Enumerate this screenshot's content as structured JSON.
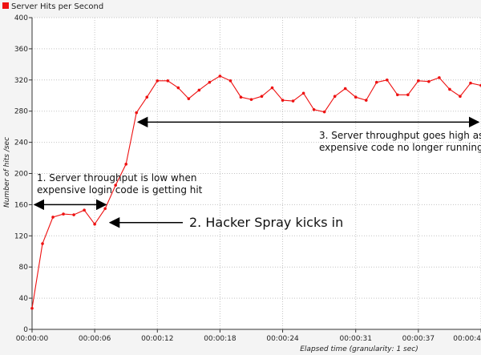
{
  "chart_data": {
    "type": "line",
    "legend": {
      "label": "Server Hits per Second",
      "color": "#ee1111",
      "placement": "top-left"
    },
    "xlabel": "Elapsed time (granularity: 1 sec)",
    "ylabel": "Number of hits /sec",
    "ylim": [
      0,
      400
    ],
    "xlim": [
      0,
      43
    ],
    "y_ticks": [
      0,
      40,
      80,
      120,
      160,
      200,
      240,
      280,
      320,
      360,
      400
    ],
    "x_ticks": [
      {
        "t": 0,
        "label": "00:00:00"
      },
      {
        "t": 6,
        "label": "00:00:06"
      },
      {
        "t": 12,
        "label": "00:00:12"
      },
      {
        "t": 18,
        "label": "00:00:18"
      },
      {
        "t": 24,
        "label": "00:00:24"
      },
      {
        "t": 31,
        "label": "00:00:31"
      },
      {
        "t": 37,
        "label": "00:00:37"
      },
      {
        "t": 43,
        "label": "00:00:4"
      }
    ],
    "grid": true,
    "series": [
      {
        "name": "Server Hits per Second",
        "color": "#ee1111",
        "x": [
          0,
          1,
          2,
          3,
          4,
          5,
          6,
          7,
          8,
          9,
          10,
          11,
          12,
          13,
          14,
          15,
          16,
          17,
          18,
          19,
          20,
          21,
          22,
          23,
          24,
          25,
          26,
          27,
          28,
          29,
          30,
          31,
          32,
          33,
          34,
          35,
          36,
          37,
          38,
          39,
          40,
          41,
          42,
          43
        ],
        "values": [
          27,
          110,
          144,
          148,
          147,
          153,
          135,
          155,
          185,
          212,
          278,
          298,
          319,
          319,
          310,
          296,
          307,
          317,
          325,
          319,
          298,
          295,
          299,
          310,
          294,
          293,
          303,
          282,
          279,
          299,
          309,
          298,
          294,
          317,
          320,
          301,
          301,
          319,
          318,
          323,
          308,
          299,
          316,
          313
        ]
      }
    ],
    "annotations": [
      {
        "lines": [
          "1. Server throughput is low when",
          "expensive login code is getting hit"
        ],
        "arrow_from_t": 0,
        "arrow_to_t": 7,
        "arrow_y": 160
      },
      {
        "lines": [
          "2. Hacker Spray kicks in"
        ],
        "arrow_to_t": 7,
        "arrow_to_y": 137
      },
      {
        "lines": [
          "3. Server throughput goes high as",
          "expensive code no longer running"
        ],
        "arrow_from_t": 10,
        "arrow_to_t": 43,
        "arrow_y": 266
      }
    ]
  }
}
